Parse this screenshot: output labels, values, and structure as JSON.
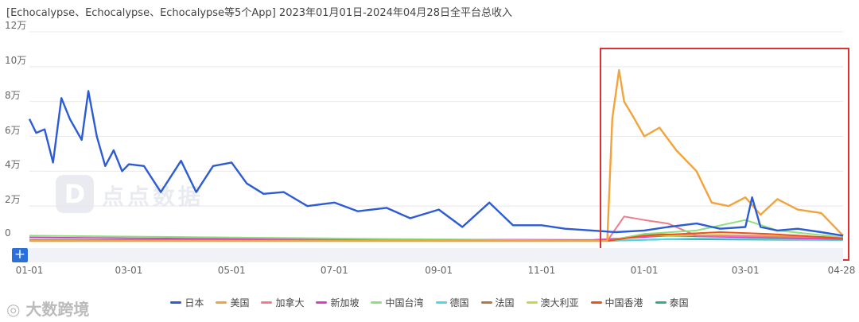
{
  "header": {
    "title": "[Echocalypse、Echocalypse、Echocalypse等5个App]  2023年01月01日-2024年04月28日全平台总收入"
  },
  "watermark": {
    "text": "点点数据",
    "logo": "D"
  },
  "corner_logo": {
    "text": "大数跨境",
    "icon": "wechat-icon"
  },
  "range_control": {
    "plus": "+"
  },
  "colors": {
    "日本": "#2c5bd6",
    "美国": "#f2a33a",
    "加拿大": "#f07b8a",
    "新加坡": "#d63fc9",
    "中国台湾": "#8ee07e",
    "德国": "#4fd8e0",
    "法国": "#b8783a",
    "澳大利亚": "#c8d84a",
    "中国香港": "#f0501e",
    "泰国": "#3aa88a"
  },
  "chart_data": {
    "type": "line",
    "title": "[Echocalypse、Echocalypse、Echocalypse等5个App]  2023年01月01日-2024年04月28日全平台总收入",
    "xlabel": "",
    "ylabel": "",
    "ylim": [
      0,
      120000
    ],
    "xlim": [
      "2023-01-01",
      "2024-04-28"
    ],
    "y_tick_labels": [
      "0",
      "2万",
      "4万",
      "6万",
      "8万",
      "10万",
      "12万"
    ],
    "y_tick_values": [
      0,
      20000,
      40000,
      60000,
      80000,
      100000,
      120000
    ],
    "x_tick_labels": [
      "01-01",
      "03-01",
      "05-01",
      "07-01",
      "09-01",
      "11-01",
      "01-01",
      "03-01",
      "04-28"
    ],
    "x_tick_dates": [
      "2023-01-01",
      "2023-03-01",
      "2023-05-01",
      "2023-07-01",
      "2023-09-01",
      "2023-11-01",
      "2024-01-01",
      "2024-03-01",
      "2024-04-28"
    ],
    "grid": true,
    "legend_position": "bottom",
    "annotation": "red rectangle highlighting 2023-12-10 to 2024-04-28",
    "series": [
      {
        "name": "日本",
        "x": [
          "2023-01-01",
          "2023-01-05",
          "2023-01-10",
          "2023-01-15",
          "2023-01-20",
          "2023-01-25",
          "2023-02-01",
          "2023-02-05",
          "2023-02-10",
          "2023-02-15",
          "2023-02-20",
          "2023-02-25",
          "2023-03-01",
          "2023-03-10",
          "2023-03-20",
          "2023-04-01",
          "2023-04-10",
          "2023-04-20",
          "2023-05-01",
          "2023-05-10",
          "2023-05-20",
          "2023-06-01",
          "2023-06-15",
          "2023-07-01",
          "2023-07-15",
          "2023-08-01",
          "2023-08-15",
          "2023-09-01",
          "2023-09-15",
          "2023-10-01",
          "2023-10-15",
          "2023-11-01",
          "2023-11-15",
          "2023-12-01",
          "2023-12-15",
          "2024-01-01",
          "2024-01-15",
          "2024-02-01",
          "2024-02-15",
          "2024-03-01",
          "2024-03-05",
          "2024-03-10",
          "2024-03-20",
          "2024-04-01",
          "2024-04-15",
          "2024-04-28"
        ],
        "values": [
          70000,
          62000,
          64000,
          45000,
          82000,
          70000,
          58000,
          86000,
          60000,
          43000,
          52000,
          40000,
          44000,
          43000,
          28000,
          46000,
          28000,
          43000,
          45000,
          33000,
          27000,
          28000,
          20000,
          22000,
          17000,
          19000,
          13000,
          18000,
          8000,
          22000,
          9000,
          9000,
          7000,
          6000,
          5000,
          6000,
          8000,
          10000,
          7000,
          8000,
          25000,
          8000,
          6000,
          7000,
          5000,
          3000
        ]
      },
      {
        "name": "美国",
        "x": [
          "2023-01-01",
          "2023-12-10",
          "2023-12-13",
          "2023-12-17",
          "2023-12-20",
          "2023-12-25",
          "2024-01-01",
          "2024-01-10",
          "2024-01-20",
          "2024-02-01",
          "2024-02-10",
          "2024-02-20",
          "2024-03-01",
          "2024-03-10",
          "2024-03-20",
          "2024-04-01",
          "2024-04-15",
          "2024-04-28"
        ],
        "values": [
          0,
          0,
          70000,
          98000,
          80000,
          72000,
          60000,
          65000,
          52000,
          40000,
          22000,
          20000,
          25000,
          15000,
          24000,
          18000,
          16000,
          3000
        ]
      },
      {
        "name": "加拿大",
        "x": [
          "2023-01-01",
          "2023-12-10",
          "2023-12-20",
          "2024-01-01",
          "2024-01-15",
          "2024-02-01",
          "2024-04-28"
        ],
        "values": [
          0,
          0,
          14000,
          12000,
          10000,
          3000,
          2000
        ]
      },
      {
        "name": "新加坡",
        "x": [
          "2023-01-01",
          "2023-03-01",
          "2023-06-01",
          "2023-09-01",
          "2023-12-01",
          "2024-01-15",
          "2024-04-28"
        ],
        "values": [
          2000,
          1500,
          1000,
          800,
          500,
          3000,
          1000
        ]
      },
      {
        "name": "中国台湾",
        "x": [
          "2023-01-01",
          "2023-12-10",
          "2024-01-01",
          "2024-02-01",
          "2024-03-01",
          "2024-03-20",
          "2024-04-28"
        ],
        "values": [
          3000,
          0,
          4000,
          6000,
          12000,
          6000,
          2000
        ]
      },
      {
        "name": "德国",
        "x": [
          "2023-01-01",
          "2023-12-10",
          "2024-02-01",
          "2024-04-28"
        ],
        "values": [
          0,
          0,
          1500,
          500
        ]
      },
      {
        "name": "法国",
        "x": [
          "2023-01-01",
          "2023-12-10",
          "2024-01-01",
          "2024-02-15",
          "2024-04-28"
        ],
        "values": [
          0,
          0,
          4000,
          3000,
          1500
        ]
      },
      {
        "name": "澳大利亚",
        "x": [
          "2023-01-01",
          "2023-12-10",
          "2024-01-01",
          "2024-02-15",
          "2024-04-28"
        ],
        "values": [
          0,
          0,
          3000,
          3500,
          2000
        ]
      },
      {
        "name": "中国香港",
        "x": [
          "2023-01-01",
          "2023-06-01",
          "2023-12-10",
          "2024-01-01",
          "2024-02-15",
          "2024-03-15",
          "2024-04-28"
        ],
        "values": [
          500,
          300,
          0,
          3000,
          5000,
          4000,
          1500
        ]
      },
      {
        "name": "泰国",
        "x": [
          "2023-01-01",
          "2023-12-10",
          "2024-01-15",
          "2024-04-28"
        ],
        "values": [
          0,
          0,
          1000,
          500
        ]
      }
    ]
  }
}
